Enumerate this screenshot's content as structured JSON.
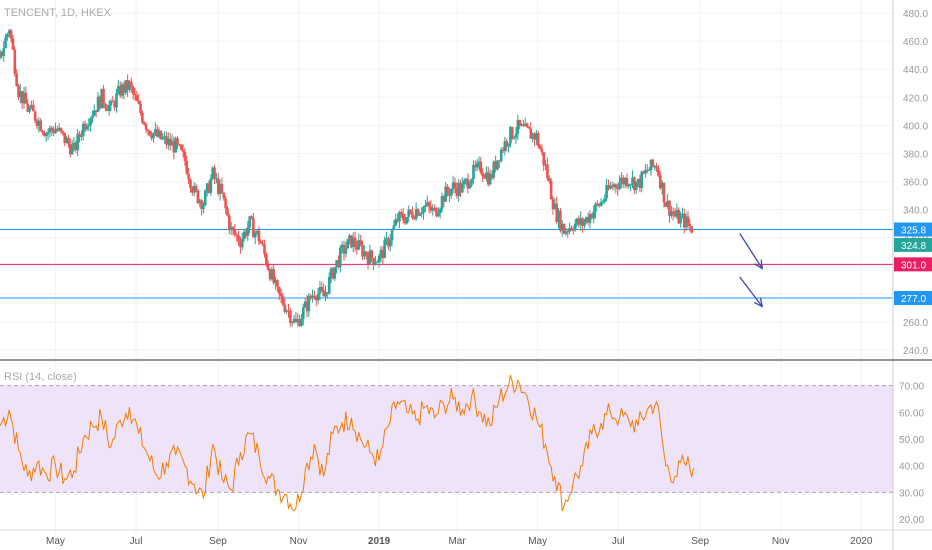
{
  "chart_title": "TENCENT, 1D, HKEX",
  "rsi_label": "RSI (14, close)",
  "colors": {
    "up": "#26a69a",
    "down": "#ef5350",
    "support": "#2196f3",
    "resistance": "#e91e63",
    "rsi_line": "#f57c00",
    "rsi_band": "#efe3fa",
    "arrow": "#3949ab"
  },
  "chart_data": [
    {
      "type": "candlestick",
      "symbol": "TENCENT",
      "interval": "1D",
      "exchange": "HKEX",
      "y_unit": "HKD",
      "ylim": [
        240,
        485
      ],
      "y_ticks": [
        "480.0",
        "460.0",
        "440.0",
        "420.0",
        "400.0",
        "380.0",
        "360.0",
        "340.0",
        "320.0",
        "300.0",
        "280.0",
        "260.0",
        "240.0"
      ],
      "x_ticks": [
        "May",
        "Jul",
        "Sep",
        "Nov",
        "2019",
        "Mar",
        "May",
        "Jul",
        "Sep",
        "Nov",
        "2020"
      ],
      "x_range": [
        "2018-03-20",
        "2020-01-25"
      ],
      "horizontal_lines": [
        {
          "value": 325.8,
          "label": "325.8",
          "color": "#2196f3"
        },
        {
          "value": 301.0,
          "label": "301.0",
          "color": "#e91e63"
        },
        {
          "value": 277.0,
          "label": "277.0",
          "color": "#2196f3"
        }
      ],
      "last_price": {
        "value": 324.8,
        "label": "324.8"
      },
      "close_path": [
        [
          "2018-03-20",
          448
        ],
        [
          "2018-03-27",
          470
        ],
        [
          "2018-04-03",
          425
        ],
        [
          "2018-04-10",
          412
        ],
        [
          "2018-04-17",
          405
        ],
        [
          "2018-04-24",
          395
        ],
        [
          "2018-05-01",
          398
        ],
        [
          "2018-05-08",
          390
        ],
        [
          "2018-05-15",
          382
        ],
        [
          "2018-05-22",
          400
        ],
        [
          "2018-05-29",
          410
        ],
        [
          "2018-06-05",
          420
        ],
        [
          "2018-06-12",
          412
        ],
        [
          "2018-06-19",
          425
        ],
        [
          "2018-06-26",
          428
        ],
        [
          "2018-07-03",
          412
        ],
        [
          "2018-07-10",
          398
        ],
        [
          "2018-07-17",
          392
        ],
        [
          "2018-07-24",
          388
        ],
        [
          "2018-07-31",
          385
        ],
        [
          "2018-08-07",
          375
        ],
        [
          "2018-08-14",
          352
        ],
        [
          "2018-08-21",
          345
        ],
        [
          "2018-08-28",
          365
        ],
        [
          "2018-09-04",
          350
        ],
        [
          "2018-09-11",
          325
        ],
        [
          "2018-09-18",
          318
        ],
        [
          "2018-09-25",
          330
        ],
        [
          "2018-10-02",
          320
        ],
        [
          "2018-10-09",
          300
        ],
        [
          "2018-10-16",
          280
        ],
        [
          "2018-10-23",
          270
        ],
        [
          "2018-10-30",
          258
        ],
        [
          "2018-11-06",
          270
        ],
        [
          "2018-11-13",
          282
        ],
        [
          "2018-11-20",
          278
        ],
        [
          "2018-11-27",
          296
        ],
        [
          "2018-12-04",
          310
        ],
        [
          "2018-12-11",
          318
        ],
        [
          "2018-12-18",
          312
        ],
        [
          "2018-12-25",
          306
        ],
        [
          "2019-01-01",
          305
        ],
        [
          "2019-01-08",
          318
        ],
        [
          "2019-01-15",
          333
        ],
        [
          "2019-01-22",
          335
        ],
        [
          "2019-01-29",
          340
        ],
        [
          "2019-02-05",
          342
        ],
        [
          "2019-02-12",
          338
        ],
        [
          "2019-02-19",
          350
        ],
        [
          "2019-02-26",
          356
        ],
        [
          "2019-03-05",
          355
        ],
        [
          "2019-03-12",
          365
        ],
        [
          "2019-03-19",
          370
        ],
        [
          "2019-03-26",
          362
        ],
        [
          "2019-04-02",
          380
        ],
        [
          "2019-04-09",
          392
        ],
        [
          "2019-04-16",
          398
        ],
        [
          "2019-04-23",
          395
        ],
        [
          "2019-04-30",
          392
        ],
        [
          "2019-05-07",
          370
        ],
        [
          "2019-05-14",
          340
        ],
        [
          "2019-05-21",
          325
        ],
        [
          "2019-05-28",
          330
        ],
        [
          "2019-06-04",
          330
        ],
        [
          "2019-06-11",
          338
        ],
        [
          "2019-06-18",
          345
        ],
        [
          "2019-06-25",
          356
        ],
        [
          "2019-07-02",
          360
        ],
        [
          "2019-07-09",
          362
        ],
        [
          "2019-07-16",
          358
        ],
        [
          "2019-07-23",
          368
        ],
        [
          "2019-07-30",
          372
        ],
        [
          "2019-08-06",
          345
        ],
        [
          "2019-08-13",
          335
        ],
        [
          "2019-08-20",
          332
        ],
        [
          "2019-08-27",
          325
        ]
      ]
    },
    {
      "type": "line",
      "name": "RSI (14, close)",
      "ylim": [
        17,
        77
      ],
      "y_ticks": [
        "70.00",
        "60.00",
        "50.00",
        "40.00",
        "30.00",
        "20.00"
      ],
      "bands": [
        70,
        30
      ],
      "series": [
        {
          "values": [
            [
              "2018-03-20",
              55
            ],
            [
              "2018-03-27",
              61
            ],
            [
              "2018-04-03",
              46
            ],
            [
              "2018-04-10",
              36
            ],
            [
              "2018-04-17",
              41
            ],
            [
              "2018-04-24",
              37
            ],
            [
              "2018-05-01",
              40
            ],
            [
              "2018-05-08",
              35
            ],
            [
              "2018-05-15",
              38
            ],
            [
              "2018-05-22",
              50
            ],
            [
              "2018-05-29",
              55
            ],
            [
              "2018-06-05",
              58
            ],
            [
              "2018-06-12",
              47
            ],
            [
              "2018-06-19",
              57
            ],
            [
              "2018-06-26",
              62
            ],
            [
              "2018-07-03",
              52
            ],
            [
              "2018-07-10",
              44
            ],
            [
              "2018-07-17",
              36
            ],
            [
              "2018-07-24",
              41
            ],
            [
              "2018-07-31",
              44
            ],
            [
              "2018-08-07",
              40
            ],
            [
              "2018-08-14",
              33
            ],
            [
              "2018-08-21",
              28
            ],
            [
              "2018-08-28",
              48
            ],
            [
              "2018-09-04",
              35
            ],
            [
              "2018-09-11",
              31
            ],
            [
              "2018-09-18",
              45
            ],
            [
              "2018-09-25",
              52
            ],
            [
              "2018-10-02",
              44
            ],
            [
              "2018-10-09",
              36
            ],
            [
              "2018-10-16",
              31
            ],
            [
              "2018-10-23",
              29
            ],
            [
              "2018-10-30",
              24
            ],
            [
              "2018-11-06",
              38
            ],
            [
              "2018-11-13",
              48
            ],
            [
              "2018-11-20",
              36
            ],
            [
              "2018-11-27",
              52
            ],
            [
              "2018-12-04",
              56
            ],
            [
              "2018-12-11",
              58
            ],
            [
              "2018-12-18",
              50
            ],
            [
              "2018-12-25",
              45
            ],
            [
              "2019-01-01",
              42
            ],
            [
              "2019-01-08",
              55
            ],
            [
              "2019-01-15",
              64
            ],
            [
              "2019-01-22",
              60
            ],
            [
              "2019-01-29",
              57
            ],
            [
              "2019-02-05",
              62
            ],
            [
              "2019-02-12",
              58
            ],
            [
              "2019-02-19",
              63
            ],
            [
              "2019-02-26",
              65
            ],
            [
              "2019-03-05",
              61
            ],
            [
              "2019-03-12",
              66
            ],
            [
              "2019-03-19",
              60
            ],
            [
              "2019-03-26",
              55
            ],
            [
              "2019-04-02",
              65
            ],
            [
              "2019-04-09",
              70
            ],
            [
              "2019-04-16",
              72
            ],
            [
              "2019-04-23",
              66
            ],
            [
              "2019-04-30",
              58
            ],
            [
              "2019-05-07",
              48
            ],
            [
              "2019-05-14",
              36
            ],
            [
              "2019-05-21",
              25
            ],
            [
              "2019-05-28",
              34
            ],
            [
              "2019-06-04",
              40
            ],
            [
              "2019-06-11",
              52
            ],
            [
              "2019-06-18",
              56
            ],
            [
              "2019-06-25",
              60
            ],
            [
              "2019-07-02",
              58
            ],
            [
              "2019-07-09",
              57
            ],
            [
              "2019-07-16",
              55
            ],
            [
              "2019-07-23",
              61
            ],
            [
              "2019-07-30",
              64
            ],
            [
              "2019-08-06",
              40
            ],
            [
              "2019-08-13",
              36
            ],
            [
              "2019-08-20",
              41
            ],
            [
              "2019-08-27",
              39
            ]
          ]
        }
      ]
    }
  ],
  "annotations": {
    "arrows": [
      {
        "from": [
          "2019-10-01",
          323
        ],
        "to": [
          "2019-10-18",
          298
        ]
      },
      {
        "from": [
          "2019-10-01",
          292
        ],
        "to": [
          "2019-10-18",
          271
        ]
      }
    ]
  }
}
